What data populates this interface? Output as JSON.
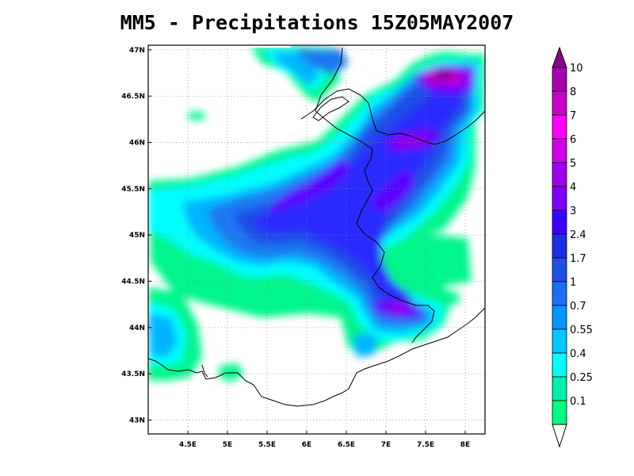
{
  "title": "MM5 - Precipitations 15Z05MAY2007",
  "map": {
    "lon_range": [
      4.0,
      8.25
    ],
    "lat_range": [
      42.85,
      47.05
    ],
    "grid": true,
    "lon_ticks": [
      "4.5E",
      "5E",
      "5.5E",
      "6E",
      "6.5E",
      "7E",
      "7.5E",
      "8E"
    ],
    "lat_ticks": [
      "47N",
      "46.5N",
      "46N",
      "45.5N",
      "45N",
      "44.5N",
      "44N",
      "43.5N",
      "43N"
    ]
  },
  "colorbar": {
    "labels": [
      "10",
      "8",
      "7",
      "6",
      "5",
      "4",
      "3",
      "2.4",
      "1.7",
      "1",
      "0.7",
      "0.55",
      "0.4",
      "0.25",
      "0.1"
    ],
    "colors": [
      "#8b008b",
      "#a800b0",
      "#c800c8",
      "#ff00ff",
      "#d000e8",
      "#a000f0",
      "#7d00ff",
      "#3a00ff",
      "#1e2ee8",
      "#1e50e6",
      "#1e6ef5",
      "#0096ff",
      "#00c8ff",
      "#00ffff",
      "#00f0b0",
      "#00ff80"
    ]
  }
}
